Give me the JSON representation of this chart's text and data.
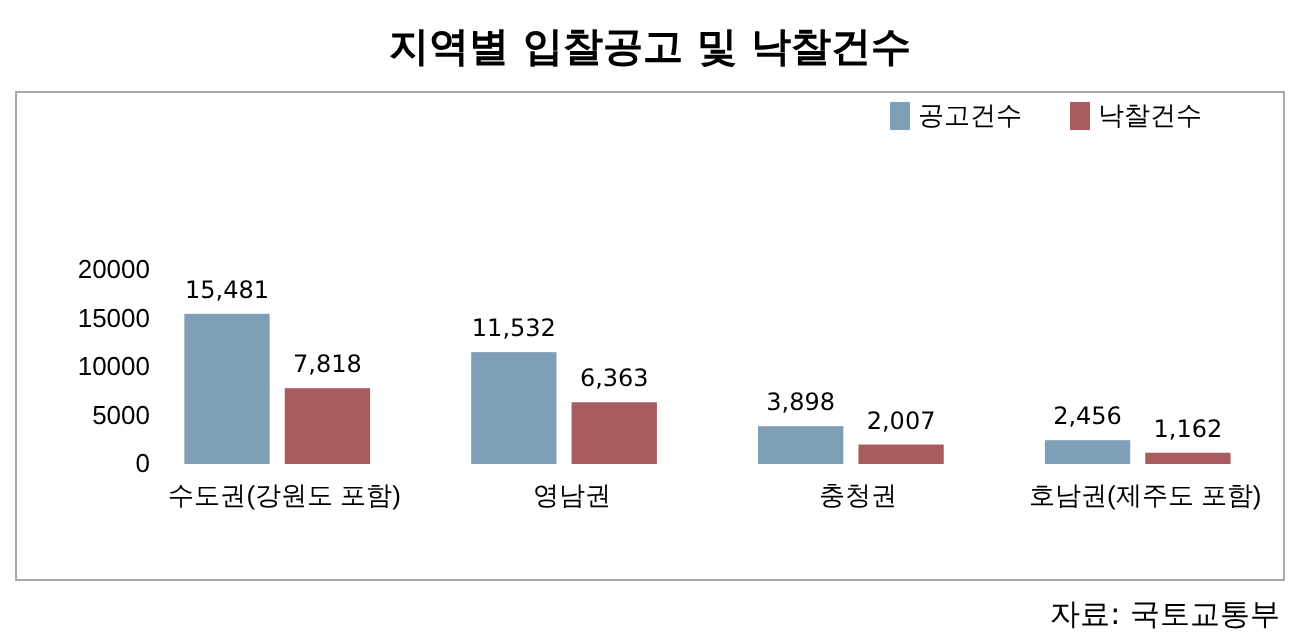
{
  "chart_data": {
    "type": "bar",
    "title": "지역별 입찰공고 및 낙찰건수",
    "categories": [
      "수도권(강원도 포함)",
      "영남권",
      "충청권",
      "호남권(제주도 포함)"
    ],
    "series": [
      {
        "name": "공고건수",
        "color": "#7f9fb6",
        "values": [
          15481,
          11532,
          3898,
          2456
        ],
        "value_labels": [
          "15,481",
          "11,532",
          "3,898",
          "2,456"
        ]
      },
      {
        "name": "낙찰건수",
        "color": "#a95c60",
        "values": [
          7818,
          6363,
          2007,
          1162
        ],
        "value_labels": [
          "7,818",
          "6,363",
          "2,007",
          "1,162"
        ]
      }
    ],
    "ylim": [
      0,
      20000
    ],
    "yticks": [
      0,
      5000,
      10000,
      15000,
      20000
    ],
    "grid": false,
    "legend": "top right",
    "annotations": [
      "자료: 국토교통부"
    ]
  }
}
